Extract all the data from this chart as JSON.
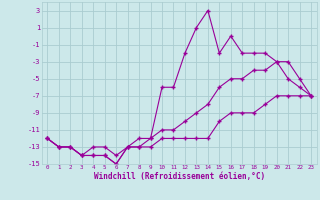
{
  "xlabel": "Windchill (Refroidissement éolien,°C)",
  "background_color": "#cce8ea",
  "grid_color": "#aaccd0",
  "line_color": "#990099",
  "hours": [
    0,
    1,
    2,
    3,
    4,
    5,
    6,
    7,
    8,
    9,
    10,
    11,
    12,
    13,
    14,
    15,
    16,
    17,
    18,
    19,
    20,
    21,
    22,
    23
  ],
  "line1": [
    -12,
    -13,
    -13,
    -14,
    -14,
    -14,
    -15,
    -13,
    -13,
    -13,
    -12,
    -12,
    -12,
    -12,
    -12,
    -10,
    -9,
    -9,
    -9,
    -8,
    -7,
    -7,
    -7,
    -7
  ],
  "line2": [
    -12,
    -13,
    -13,
    -14,
    -14,
    -14,
    -15,
    -13,
    -13,
    -12,
    -6,
    -6,
    -2,
    1,
    3,
    -2,
    0,
    -2,
    -2,
    -2,
    -3,
    -5,
    -6,
    -7
  ],
  "line3": [
    -12,
    -13,
    -13,
    -14,
    -13,
    -13,
    -14,
    -13,
    -12,
    -12,
    -11,
    -11,
    -10,
    -9,
    -8,
    -6,
    -5,
    -5,
    -4,
    -4,
    -3,
    -3,
    -5,
    -7
  ],
  "ylim": [
    -15,
    4
  ],
  "xlim": [
    -0.5,
    23.5
  ],
  "yticks": [
    3,
    1,
    -1,
    -3,
    -5,
    -7,
    -9,
    -11,
    -13,
    -15
  ],
  "xticks": [
    0,
    1,
    2,
    3,
    4,
    5,
    6,
    7,
    8,
    9,
    10,
    11,
    12,
    13,
    14,
    15,
    16,
    17,
    18,
    19,
    20,
    21,
    22,
    23
  ]
}
